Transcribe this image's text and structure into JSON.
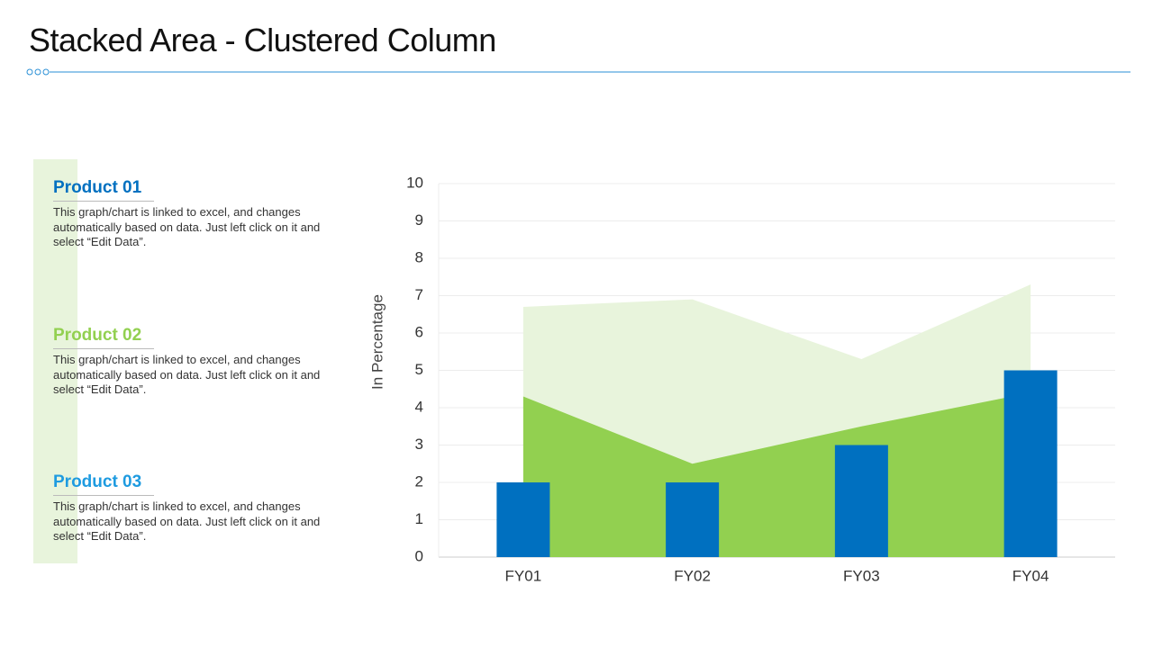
{
  "header": {
    "title": "Stacked Area - Clustered Column"
  },
  "products": [
    {
      "title": "Product 01",
      "text": "This graph/chart is linked to excel, and changes automatically based on data. Just left click on it and select “Edit Data”."
    },
    {
      "title": "Product 02",
      "text": "This graph/chart is linked to excel, and changes automatically based on data. Just left click on it and select “Edit Data”."
    },
    {
      "title": "Product 03",
      "text": "This graph/chart is linked to excel, and changes automatically based on data. Just left click on it and select “Edit Data”."
    }
  ],
  "chart_data": {
    "type": "combo",
    "y_label": "In Percentage",
    "categories": [
      "FY01",
      "FY02",
      "FY03",
      "FY04"
    ],
    "series": [
      {
        "type": "area",
        "color": "#92d050",
        "values": [
          4.3,
          2.5,
          3.5,
          4.4
        ]
      },
      {
        "type": "area",
        "color": "#e8f4dc",
        "values": [
          2.4,
          4.4,
          1.8,
          2.9
        ]
      },
      {
        "type": "bar",
        "color": "#0070c0",
        "values": [
          2,
          2,
          3,
          5
        ]
      }
    ],
    "ylim": [
      0,
      10
    ],
    "yticks": [
      0,
      1,
      2,
      3,
      4,
      5,
      6,
      7,
      8,
      9,
      10
    ],
    "grid": true
  }
}
